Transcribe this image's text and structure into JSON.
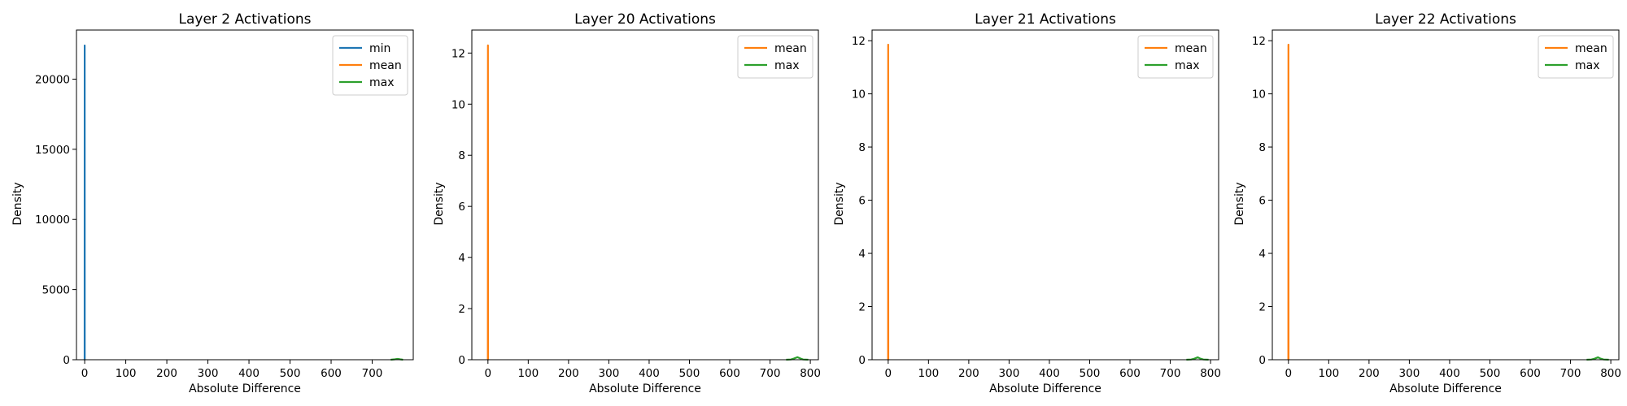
{
  "chart_data": [
    {
      "type": "line",
      "title": "Layer 2 Activations",
      "xlabel": "Absolute Difference",
      "ylabel": "Density",
      "xlim": [
        -20,
        800
      ],
      "ylim": [
        0,
        23500
      ],
      "xticks": [
        0,
        100,
        200,
        300,
        400,
        500,
        600,
        700
      ],
      "yticks": [
        0,
        5000,
        10000,
        15000,
        20000
      ],
      "legend": "top-right",
      "series": [
        {
          "name": "min",
          "color": "#1f77b4",
          "x": [
            -0.3,
            -0.15,
            0,
            0.15,
            0.3
          ],
          "y": [
            0,
            0,
            22400,
            0,
            0
          ]
        },
        {
          "name": "mean",
          "color": "#ff7f0e",
          "x": [
            -0.3,
            0,
            0.3
          ],
          "y": [
            0,
            0,
            0
          ]
        },
        {
          "name": "max",
          "color": "#2ca02c",
          "x": [
            745,
            755,
            762,
            768,
            775
          ],
          "y": [
            0,
            30,
            60,
            30,
            0
          ]
        }
      ]
    },
    {
      "type": "line",
      "title": "Layer 20 Activations",
      "xlabel": "Absolute Difference",
      "ylabel": "Density",
      "xlim": [
        -40,
        820
      ],
      "ylim": [
        0,
        12.9
      ],
      "xticks": [
        0,
        100,
        200,
        300,
        400,
        500,
        600,
        700,
        800
      ],
      "yticks": [
        0,
        2,
        4,
        6,
        8,
        10,
        12
      ],
      "legend": "top-right",
      "series": [
        {
          "name": "mean",
          "color": "#ff7f0e",
          "x": [
            -0.5,
            -0.3,
            0,
            0.3,
            0.5
          ],
          "y": [
            0,
            0,
            12.3,
            0,
            0
          ]
        },
        {
          "name": "max",
          "color": "#2ca02c",
          "x": [
            740,
            752,
            760,
            768,
            775,
            782,
            795
          ],
          "y": [
            0,
            0.01,
            0.05,
            0.1,
            0.05,
            0.01,
            0
          ]
        }
      ]
    },
    {
      "type": "line",
      "title": "Layer 21 Activations",
      "xlabel": "Absolute Difference",
      "ylabel": "Density",
      "xlim": [
        -40,
        820
      ],
      "ylim": [
        0,
        12.4
      ],
      "xticks": [
        0,
        100,
        200,
        300,
        400,
        500,
        600,
        700,
        800
      ],
      "yticks": [
        0,
        2,
        4,
        6,
        8,
        10,
        12
      ],
      "legend": "top-right",
      "series": [
        {
          "name": "mean",
          "color": "#ff7f0e",
          "x": [
            -0.5,
            -0.3,
            0,
            0.3,
            0.5
          ],
          "y": [
            0,
            0,
            11.85,
            0,
            0
          ]
        },
        {
          "name": "max",
          "color": "#2ca02c",
          "x": [
            740,
            752,
            760,
            768,
            775,
            782,
            795
          ],
          "y": [
            0,
            0.01,
            0.04,
            0.09,
            0.04,
            0.01,
            0
          ]
        }
      ]
    },
    {
      "type": "line",
      "title": "Layer 22 Activations",
      "xlabel": "Absolute Difference",
      "ylabel": "Density",
      "xlim": [
        -40,
        820
      ],
      "ylim": [
        0,
        12.4
      ],
      "xticks": [
        0,
        100,
        200,
        300,
        400,
        500,
        600,
        700,
        800
      ],
      "yticks": [
        0,
        2,
        4,
        6,
        8,
        10,
        12
      ],
      "legend": "top-right",
      "series": [
        {
          "name": "mean",
          "color": "#ff7f0e",
          "x": [
            -0.5,
            -0.3,
            0,
            0.3,
            0.5
          ],
          "y": [
            0,
            0,
            11.85,
            0,
            0
          ]
        },
        {
          "name": "max",
          "color": "#2ca02c",
          "x": [
            740,
            752,
            760,
            768,
            775,
            782,
            795
          ],
          "y": [
            0,
            0.01,
            0.04,
            0.09,
            0.04,
            0.01,
            0
          ]
        }
      ]
    }
  ]
}
